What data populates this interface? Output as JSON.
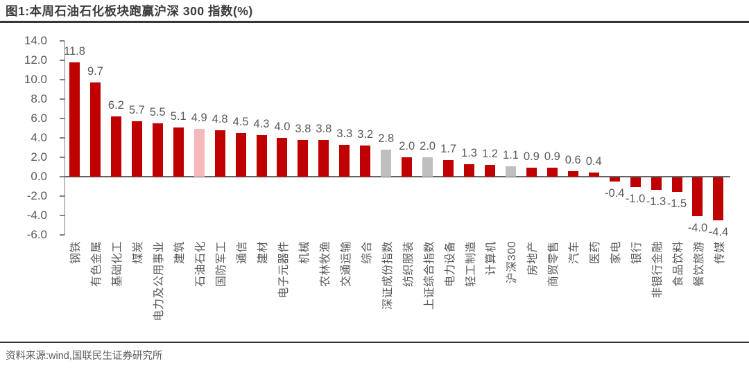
{
  "title": "图1:本周石油石化板块跑赢沪深 300 指数(%)",
  "footer": {
    "source_label": "资料来源:wind,国联民生证券研究所"
  },
  "chart_data": {
    "type": "bar",
    "title": "本周石油石化板块跑赢沪深 300 指数(%)",
    "xlabel": "",
    "ylabel": "",
    "ylim": [
      -6.0,
      14.0
    ],
    "ytick_step": 2.0,
    "ytick_labels": [
      "14.0",
      "12.0",
      "10.0",
      "8.0",
      "6.0",
      "4.0",
      "2.0",
      "0.0",
      "-2.0",
      "-4.0",
      "-6.0"
    ],
    "grid": false,
    "legend": "none",
    "value_label_style": "outside-end, one decimal",
    "colors": {
      "sector": "#C00000",
      "highlight": "#F5B8BB",
      "index": "#BFBFBF"
    },
    "highlight_category": "石油石化",
    "index_categories": [
      "深证成份指数",
      "上证综合指数",
      "沪深300"
    ],
    "items": [
      {
        "label": "钢铁",
        "value": 11.8,
        "kind": "sector"
      },
      {
        "label": "有色金属",
        "value": 9.7,
        "kind": "sector"
      },
      {
        "label": "基础化工",
        "value": 6.2,
        "kind": "sector"
      },
      {
        "label": "煤炭",
        "value": 5.7,
        "kind": "sector"
      },
      {
        "label": "电力及公用事业",
        "value": 5.5,
        "kind": "sector"
      },
      {
        "label": "建筑",
        "value": 5.1,
        "kind": "sector"
      },
      {
        "label": "石油石化",
        "value": 4.9,
        "kind": "highlight"
      },
      {
        "label": "国防军工",
        "value": 4.8,
        "kind": "sector"
      },
      {
        "label": "通信",
        "value": 4.5,
        "kind": "sector"
      },
      {
        "label": "建材",
        "value": 4.3,
        "kind": "sector"
      },
      {
        "label": "电子元器件",
        "value": 4.0,
        "kind": "sector"
      },
      {
        "label": "机械",
        "value": 3.8,
        "kind": "sector"
      },
      {
        "label": "农林牧渔",
        "value": 3.8,
        "kind": "sector"
      },
      {
        "label": "交通运输",
        "value": 3.3,
        "kind": "sector"
      },
      {
        "label": "综合",
        "value": 3.2,
        "kind": "sector"
      },
      {
        "label": "深证成份指数",
        "value": 2.8,
        "kind": "index"
      },
      {
        "label": "纺织服装",
        "value": 2.0,
        "kind": "sector"
      },
      {
        "label": "上证综合指数",
        "value": 2.0,
        "kind": "index"
      },
      {
        "label": "电力设备",
        "value": 1.7,
        "kind": "sector"
      },
      {
        "label": "轻工制造",
        "value": 1.3,
        "kind": "sector"
      },
      {
        "label": "计算机",
        "value": 1.2,
        "kind": "sector"
      },
      {
        "label": "沪深300",
        "value": 1.1,
        "kind": "index"
      },
      {
        "label": "房地产",
        "value": 0.9,
        "kind": "sector"
      },
      {
        "label": "商贸零售",
        "value": 0.9,
        "kind": "sector"
      },
      {
        "label": "汽车",
        "value": 0.6,
        "kind": "sector"
      },
      {
        "label": "医药",
        "value": 0.4,
        "kind": "sector"
      },
      {
        "label": "家电",
        "value": -0.4,
        "kind": "sector"
      },
      {
        "label": "银行",
        "value": -1.0,
        "kind": "sector"
      },
      {
        "label": "非银行金融",
        "value": -1.3,
        "kind": "sector"
      },
      {
        "label": "食品饮料",
        "value": -1.5,
        "kind": "sector"
      },
      {
        "label": "餐饮旅游",
        "value": -4.0,
        "kind": "sector"
      },
      {
        "label": "传媒",
        "value": -4.4,
        "kind": "sector"
      }
    ]
  }
}
